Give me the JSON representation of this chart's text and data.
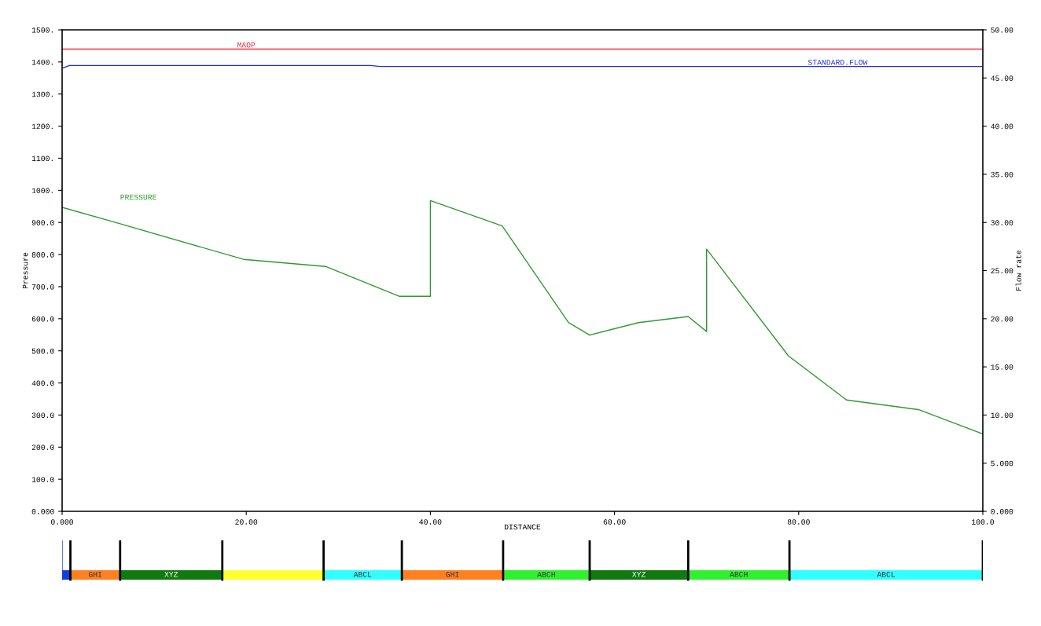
{
  "chart_data": [
    {
      "type": "line",
      "xlabel": "DISTANCE",
      "ylabel": "Pressure",
      "y2label": "Flow rate",
      "xlim": [
        0,
        100
      ],
      "xticks": [
        {
          "value": 0,
          "label": "0.000"
        },
        {
          "value": 20,
          "label": "20.00"
        },
        {
          "value": 40,
          "label": "40.00"
        },
        {
          "value": 60,
          "label": "60.00"
        },
        {
          "value": 80,
          "label": "80.00"
        },
        {
          "value": 100,
          "label": "100.0"
        }
      ],
      "ylim": [
        0,
        1500
      ],
      "yticks": [
        {
          "value": 0,
          "label": "0.000"
        },
        {
          "value": 100,
          "label": "100.0"
        },
        {
          "value": 200,
          "label": "200.0"
        },
        {
          "value": 300,
          "label": "300.0"
        },
        {
          "value": 400,
          "label": "400.0"
        },
        {
          "value": 500,
          "label": "500.0"
        },
        {
          "value": 600,
          "label": "600.0"
        },
        {
          "value": 700,
          "label": "700.0"
        },
        {
          "value": 800,
          "label": "800.0"
        },
        {
          "value": 900,
          "label": "900.0"
        },
        {
          "value": 1000,
          "label": "1000."
        },
        {
          "value": 1100,
          "label": "1100."
        },
        {
          "value": 1200,
          "label": "1200."
        },
        {
          "value": 1300,
          "label": "1300."
        },
        {
          "value": 1400,
          "label": "1400."
        },
        {
          "value": 1500,
          "label": "1500."
        }
      ],
      "y2lim": [
        0,
        50
      ],
      "y2ticks": [
        {
          "value": 0,
          "label": "0.000"
        },
        {
          "value": 5,
          "label": "5.000"
        },
        {
          "value": 10,
          "label": "10.00"
        },
        {
          "value": 15,
          "label": "15.00"
        },
        {
          "value": 20,
          "label": "20.00"
        },
        {
          "value": 25,
          "label": "25.00"
        },
        {
          "value": 30,
          "label": "30.00"
        },
        {
          "value": 35,
          "label": "35.00"
        },
        {
          "value": 40,
          "label": "40.00"
        },
        {
          "value": 45,
          "label": "45.00"
        },
        {
          "value": 50,
          "label": "50.00"
        }
      ],
      "grid": false,
      "legend": false,
      "ref_lines": [
        {
          "axis": "y",
          "value": 1440,
          "label": "MAOP",
          "color": "#f03040"
        }
      ],
      "series": [
        {
          "name": "PRESSURE",
          "color": "#2f9a2f",
          "x": [
            0,
            6.3,
            19.7,
            28.6,
            36.6,
            40.0,
            40.0,
            47.8,
            55.0,
            57.3,
            62.6,
            68.0,
            70.0,
            70.0,
            78.9,
            85.2,
            93.0,
            100
          ],
          "values": [
            947,
            896,
            785,
            763,
            670,
            670,
            968,
            889,
            588,
            549,
            588,
            607,
            560,
            817,
            484,
            347,
            317,
            241
          ]
        },
        {
          "name": "STANDARD.FLOW",
          "color": "#2030e0",
          "axis": "y2",
          "x": [
            0,
            0.8,
            33.5,
            34.5,
            100
          ],
          "values": [
            46.0,
            46.3,
            46.3,
            46.2,
            46.2
          ]
        }
      ]
    },
    {
      "type": "bar",
      "orientation": "horizontal",
      "stacked": true,
      "categories": [
        null
      ],
      "xlim": [
        0,
        100
      ],
      "legend": false,
      "series": [
        {
          "color": "#1040e0",
          "values": [
            0.9
          ]
        },
        {
          "name": "GHI",
          "color": "#ff8020",
          "values": [
            5.4
          ]
        },
        {
          "name": "XYZ",
          "color": "#107a10",
          "values": [
            11.1
          ]
        },
        {
          "color": "#ffff30",
          "values": [
            11.0
          ]
        },
        {
          "name": "ABCL",
          "color": "#30ffff",
          "values": [
            8.5
          ]
        },
        {
          "name": "GHI",
          "color": "#ff8020",
          "values": [
            11.0
          ]
        },
        {
          "name": "ABCH",
          "color": "#30f030",
          "values": [
            9.4
          ]
        },
        {
          "name": "XYZ",
          "color": "#107a10",
          "values": [
            10.7
          ]
        },
        {
          "name": "ABCH",
          "color": "#30f030",
          "values": [
            11.0
          ]
        },
        {
          "name": "ABCL",
          "color": "#30ffff",
          "values": [
            21.0
          ]
        }
      ]
    }
  ]
}
